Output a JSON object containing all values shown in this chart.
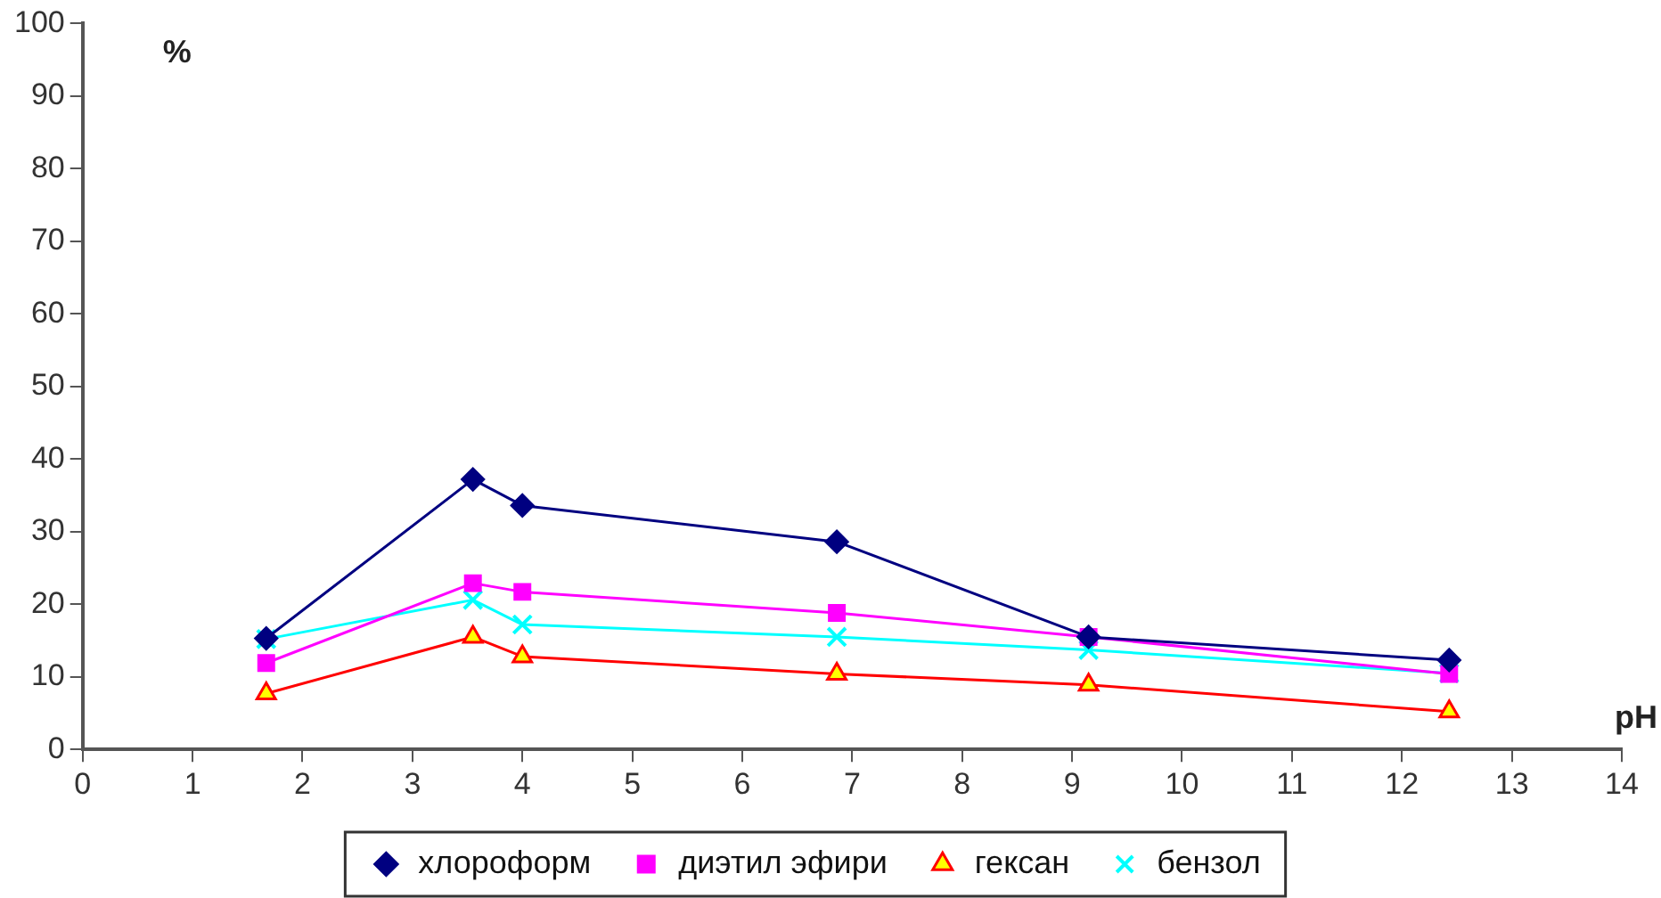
{
  "chart_data": {
    "type": "line",
    "xlabel": "pH",
    "ylabel": "%",
    "xlim": [
      0,
      14
    ],
    "xticks": [
      0,
      1,
      2,
      3,
      4,
      5,
      6,
      7,
      8,
      9,
      10,
      11,
      12,
      13,
      14
    ],
    "ylim": [
      0,
      100
    ],
    "yticks": [
      0,
      10,
      20,
      30,
      40,
      50,
      60,
      70,
      80,
      90,
      100
    ],
    "grid": false,
    "legend": "bottom",
    "line_style": "solid",
    "x": [
      1.67,
      3.55,
      4.0,
      6.86,
      9.15,
      12.43
    ],
    "series": [
      {
        "name": "хлороформ",
        "color": "#000080",
        "marker": "diamond",
        "values": [
          15.3,
          37.2,
          33.6,
          28.6,
          15.5,
          12.3
        ]
      },
      {
        "name": "диэтил эфири",
        "color": "#ff00ff",
        "marker": "square",
        "values": [
          11.9,
          22.9,
          21.7,
          18.8,
          15.5,
          10.4
        ]
      },
      {
        "name": "гексан",
        "color": "#ff0000",
        "marker": "triangle",
        "values": [
          7.7,
          15.5,
          12.8,
          10.4,
          8.9,
          5.2
        ]
      },
      {
        "name": "бензол",
        "color": "#00ffff",
        "marker": "cross",
        "values": [
          15.2,
          20.6,
          17.2,
          15.5,
          13.7,
          10.5
        ]
      }
    ]
  }
}
